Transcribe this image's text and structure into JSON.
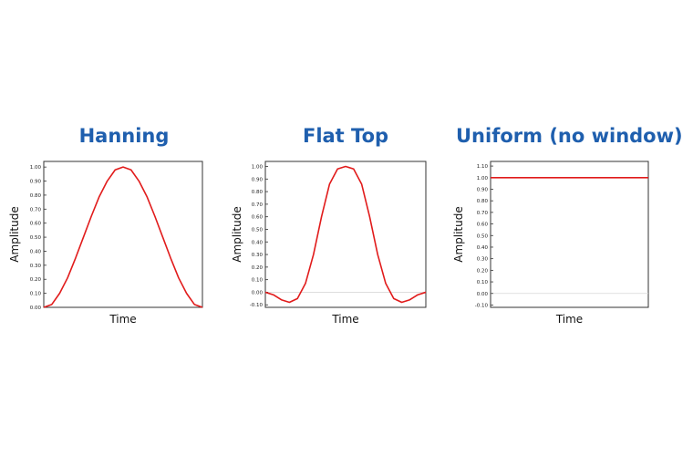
{
  "chart_data": [
    {
      "type": "line",
      "title": "Hanning",
      "xlabel": "Time",
      "ylabel": "Amplitude",
      "ylim": [
        0,
        1.04
      ],
      "yticks": [
        "0.00",
        "0.10",
        "0.20",
        "0.30",
        "0.40",
        "0.50",
        "0.60",
        "0.70",
        "0.80",
        "0.90",
        "1.00"
      ],
      "grid": false,
      "series": [
        {
          "color": "#e11b1b",
          "x": [
            0,
            0.05,
            0.1,
            0.15,
            0.2,
            0.25,
            0.3,
            0.35,
            0.4,
            0.45,
            0.5,
            0.55,
            0.6,
            0.65,
            0.7,
            0.75,
            0.8,
            0.85,
            0.9,
            0.95,
            1
          ],
          "y": [
            0,
            0.02,
            0.1,
            0.21,
            0.35,
            0.5,
            0.65,
            0.79,
            0.9,
            0.98,
            1.0,
            0.98,
            0.9,
            0.79,
            0.65,
            0.5,
            0.35,
            0.21,
            0.1,
            0.02,
            0
          ]
        }
      ]
    },
    {
      "type": "line",
      "title": "Flat Top",
      "xlabel": "Time",
      "ylabel": "Amplitude",
      "ylim": [
        -0.12,
        1.04
      ],
      "yticks": [
        "-0.10",
        "0.00",
        "0.10",
        "0.20",
        "0.30",
        "0.40",
        "0.50",
        "0.60",
        "0.70",
        "0.80",
        "0.90",
        "1.00"
      ],
      "grid": false,
      "series": [
        {
          "color": "#e11b1b",
          "x": [
            0,
            0.05,
            0.1,
            0.15,
            0.2,
            0.25,
            0.3,
            0.35,
            0.4,
            0.45,
            0.5,
            0.55,
            0.6,
            0.65,
            0.7,
            0.75,
            0.8,
            0.85,
            0.9,
            0.95,
            1
          ],
          "y": [
            0,
            -0.02,
            -0.06,
            -0.08,
            -0.05,
            0.07,
            0.3,
            0.6,
            0.86,
            0.98,
            1.0,
            0.98,
            0.86,
            0.6,
            0.3,
            0.07,
            -0.05,
            -0.08,
            -0.06,
            -0.02,
            0
          ]
        }
      ]
    },
    {
      "type": "line",
      "title": "Uniform (no window)",
      "xlabel": "Time",
      "ylabel": "Amplitude",
      "ylim": [
        -0.12,
        1.14
      ],
      "yticks": [
        "-0.10",
        "0.00",
        "0.10",
        "0.20",
        "0.30",
        "0.40",
        "0.50",
        "0.60",
        "0.70",
        "0.80",
        "0.90",
        "1.00",
        "1.10"
      ],
      "grid": false,
      "series": [
        {
          "color": "#e11b1b",
          "x": [
            0,
            1
          ],
          "y": [
            1.0,
            1.0
          ]
        }
      ]
    }
  ]
}
